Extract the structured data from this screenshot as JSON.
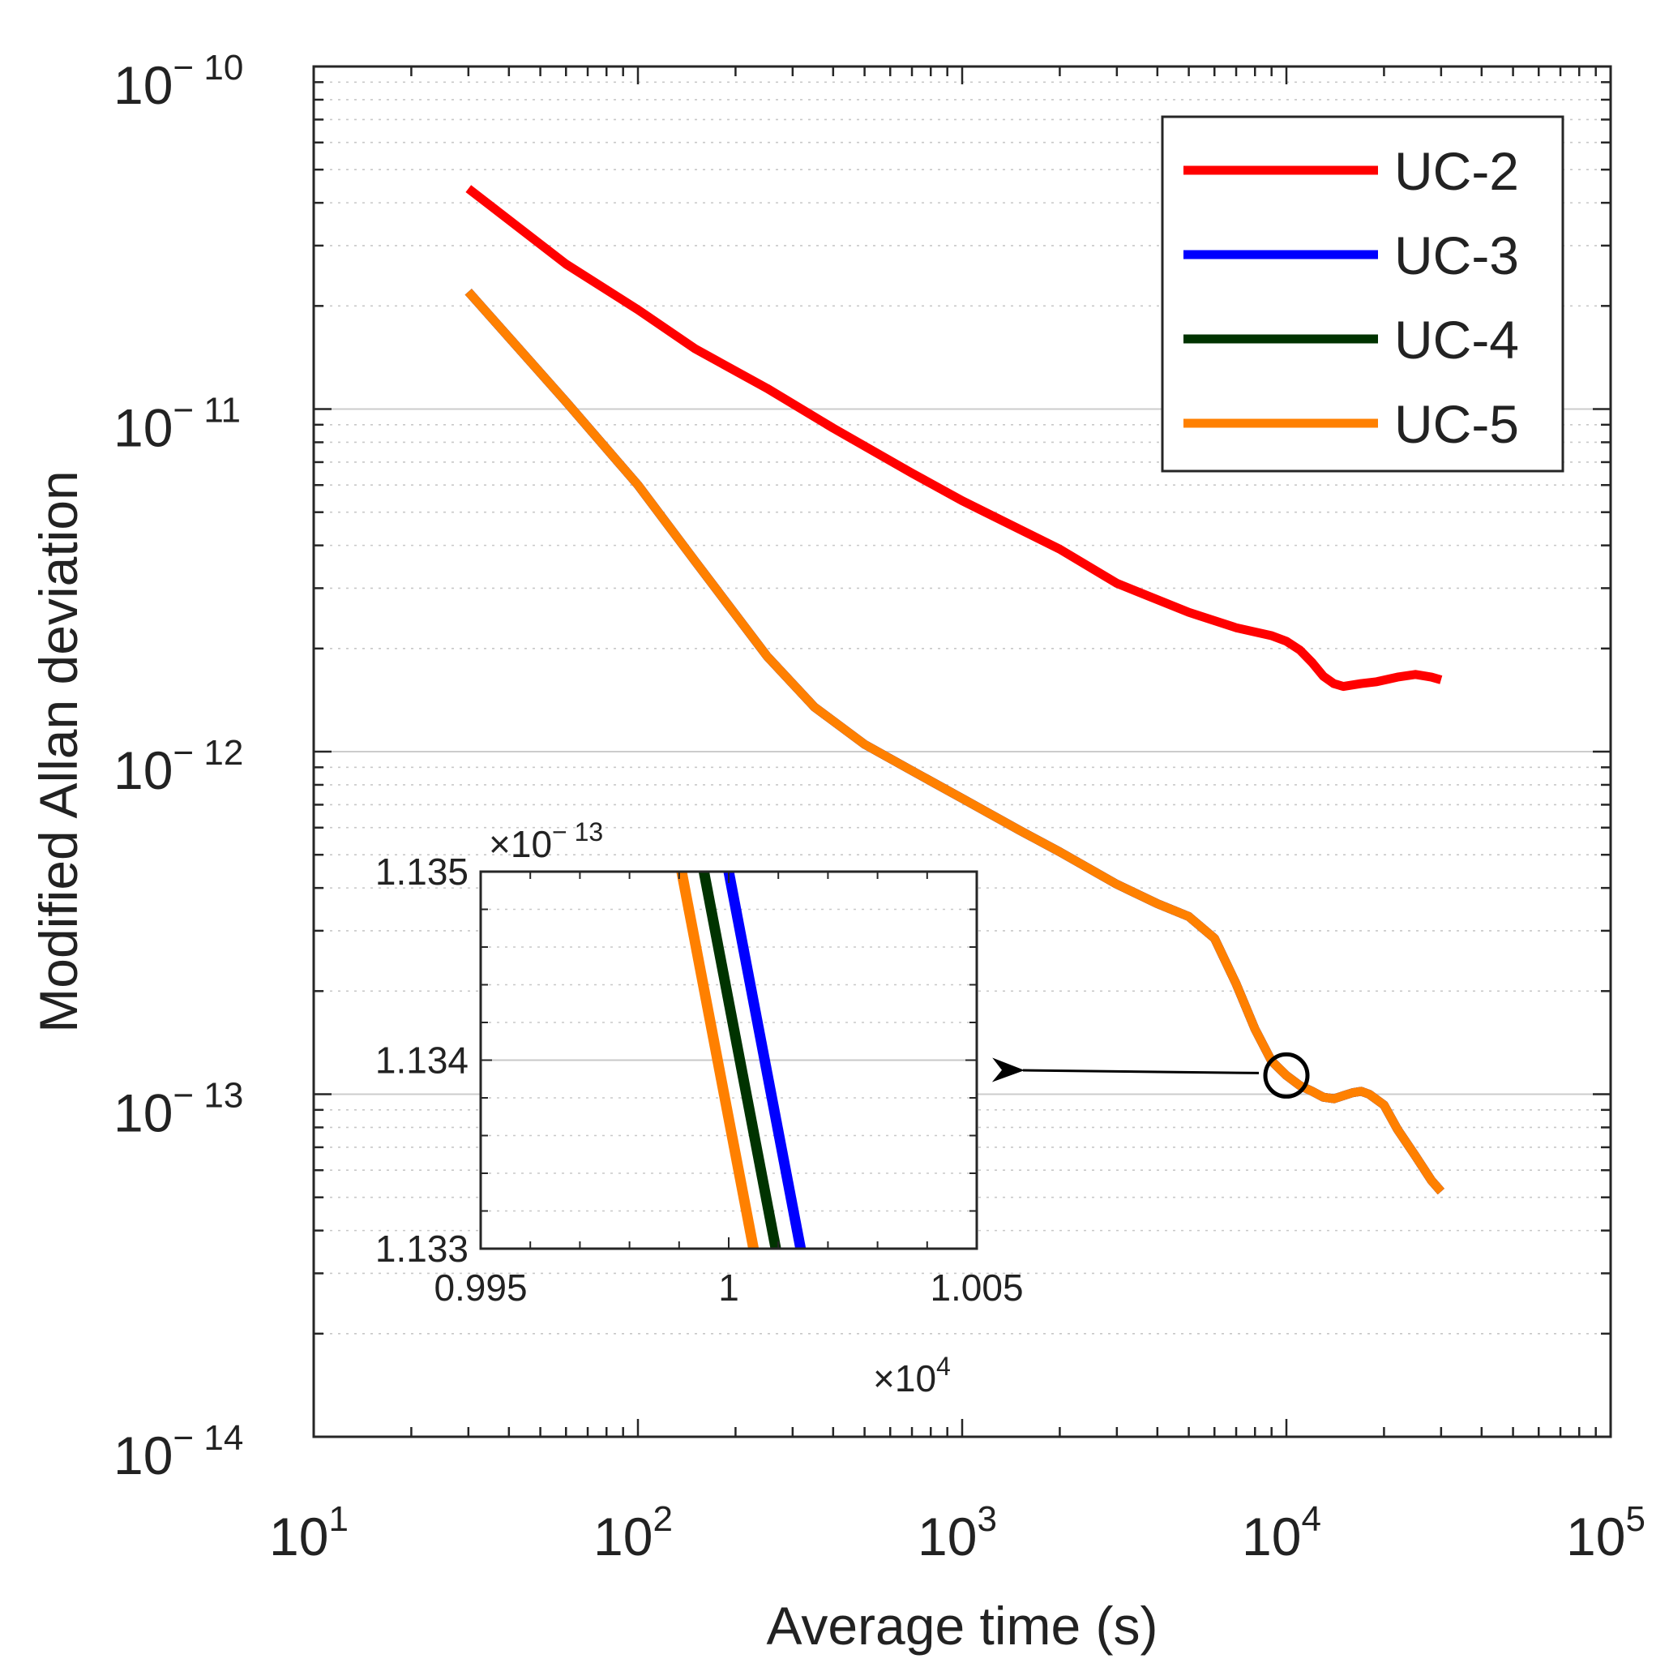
{
  "chart_data": [
    {
      "type": "line",
      "xlabel": "Average time (s)",
      "ylabel": "Modified Allan deviation",
      "xscale": "log",
      "yscale": "log",
      "xlim": [
        10,
        100000
      ],
      "ylim": [
        1e-14,
        1e-10
      ],
      "xticks": [
        {
          "base": "10",
          "exp": "1"
        },
        {
          "base": "10",
          "exp": "2"
        },
        {
          "base": "10",
          "exp": "3"
        },
        {
          "base": "10",
          "exp": "4"
        },
        {
          "base": "10",
          "exp": "5"
        }
      ],
      "yticks": [
        {
          "base": "10",
          "exp": "− 14"
        },
        {
          "base": "10",
          "exp": "− 13"
        },
        {
          "base": "10",
          "exp": "− 12"
        },
        {
          "base": "10",
          "exp": "− 11"
        },
        {
          "base": "10",
          "exp": "− 10"
        }
      ],
      "grid": true,
      "legend": "top-right",
      "series": [
        {
          "name": "UC-2",
          "color": "#ff0000",
          "x": [
            30,
            60,
            100,
            150,
            250,
            400,
            700,
            1000,
            2000,
            3000,
            5000,
            7000,
            9000,
            10000,
            11000,
            12000,
            13000,
            14000,
            15000,
            17000,
            19000,
            22000,
            25000,
            28000,
            30000
          ],
          "y": [
            4.4e-11,
            2.65e-11,
            1.95e-11,
            1.5e-11,
            1.15e-11,
            8.8e-12,
            6.5e-12,
            5.4e-12,
            3.9e-12,
            3.1e-12,
            2.55e-12,
            2.3e-12,
            2.18e-12,
            2.1e-12,
            1.98e-12,
            1.82e-12,
            1.66e-12,
            1.58e-12,
            1.55e-12,
            1.58e-12,
            1.6e-12,
            1.65e-12,
            1.68e-12,
            1.65e-12,
            1.62e-12
          ]
        },
        {
          "name": "UC-3",
          "color": "#0000ff",
          "x": [
            30,
            60,
            100,
            150,
            250,
            350,
            500,
            700,
            1000,
            1500,
            2000,
            3000,
            4000,
            5000,
            6000,
            7000,
            8000,
            9000,
            10000,
            11000,
            12000,
            13000,
            14000,
            15000,
            16000,
            17000,
            18000,
            20000,
            22000,
            25000,
            28000,
            30000
          ],
          "y": [
            2.2e-11,
            1.05e-11,
            6e-12,
            3.6e-12,
            1.9e-12,
            1.35e-12,
            1.05e-12,
            8.8e-13,
            7.3e-13,
            5.9e-13,
            5.1e-13,
            4.1e-13,
            3.6e-13,
            3.3e-13,
            2.85e-13,
            2.1e-13,
            1.55e-13,
            1.25e-13,
            1.134e-13,
            1.06e-13,
            1.02e-13,
            9.8e-14,
            9.7e-14,
            9.9e-14,
            1.01e-13,
            1.02e-13,
            1e-13,
            9.3e-14,
            7.9e-14,
            6.6e-14,
            5.6e-14,
            5.2e-14
          ]
        },
        {
          "name": "UC-4",
          "color": "#003300",
          "x": [
            30,
            60,
            100,
            150,
            250,
            350,
            500,
            700,
            1000,
            1500,
            2000,
            3000,
            4000,
            5000,
            6000,
            7000,
            8000,
            9000,
            10000,
            11000,
            12000,
            13000,
            14000,
            15000,
            16000,
            17000,
            18000,
            20000,
            22000,
            25000,
            28000,
            30000
          ],
          "y": [
            2.2e-11,
            1.05e-11,
            6e-12,
            3.6e-12,
            1.9e-12,
            1.35e-12,
            1.05e-12,
            8.8e-13,
            7.3e-13,
            5.9e-13,
            5.1e-13,
            4.1e-13,
            3.6e-13,
            3.3e-13,
            2.85e-13,
            2.1e-13,
            1.55e-13,
            1.25e-13,
            1.134e-13,
            1.06e-13,
            1.02e-13,
            9.8e-14,
            9.7e-14,
            9.9e-14,
            1.01e-13,
            1.02e-13,
            1e-13,
            9.3e-14,
            7.9e-14,
            6.6e-14,
            5.6e-14,
            5.2e-14
          ]
        },
        {
          "name": "UC-5",
          "color": "#ff8000",
          "x": [
            30,
            60,
            100,
            150,
            250,
            350,
            500,
            700,
            1000,
            1500,
            2000,
            3000,
            4000,
            5000,
            6000,
            7000,
            8000,
            9000,
            10000,
            11000,
            12000,
            13000,
            14000,
            15000,
            16000,
            17000,
            18000,
            20000,
            22000,
            25000,
            28000,
            30000
          ],
          "y": [
            2.2e-11,
            1.05e-11,
            6e-12,
            3.6e-12,
            1.9e-12,
            1.35e-12,
            1.05e-12,
            8.8e-13,
            7.3e-13,
            5.9e-13,
            5.1e-13,
            4.1e-13,
            3.6e-13,
            3.3e-13,
            2.85e-13,
            2.1e-13,
            1.55e-13,
            1.25e-13,
            1.134e-13,
            1.06e-13,
            1.02e-13,
            9.8e-14,
            9.7e-14,
            9.9e-14,
            1.01e-13,
            1.02e-13,
            1e-13,
            9.3e-14,
            7.9e-14,
            6.6e-14,
            5.6e-14,
            5.2e-14
          ]
        }
      ],
      "annotations": [
        {
          "type": "circle",
          "x": 10000,
          "y": 1.134e-13
        },
        {
          "type": "arrow",
          "from": {
            "x": 10000,
            "y": 1.134e-13
          },
          "to": "inset"
        }
      ]
    },
    {
      "type": "line",
      "inset": true,
      "xlim": [
        9950,
        10050
      ],
      "ylim": [
        1.133e-13,
        1.135e-13
      ],
      "xticks": [
        "0.995",
        "1",
        "1.005"
      ],
      "x_multiplier": {
        "base": "×10",
        "exp": "4"
      },
      "yticks": [
        "1.133",
        "1.134",
        "1.135"
      ],
      "y_multiplier": {
        "base": "×10",
        "exp": "− 13"
      },
      "grid": true,
      "series": [
        {
          "name": "UC-5",
          "color": "#ff8000",
          "x": [
            9990.5,
            10005.0
          ],
          "y": [
            1.135e-13,
            1.133e-13
          ]
        },
        {
          "name": "UC-4",
          "color": "#003300",
          "x": [
            9995.0,
            10009.5
          ],
          "y": [
            1.135e-13,
            1.133e-13
          ]
        },
        {
          "name": "UC-3",
          "color": "#0000ff",
          "x": [
            10000.0,
            10014.5
          ],
          "y": [
            1.135e-13,
            1.133e-13
          ]
        }
      ]
    }
  ]
}
